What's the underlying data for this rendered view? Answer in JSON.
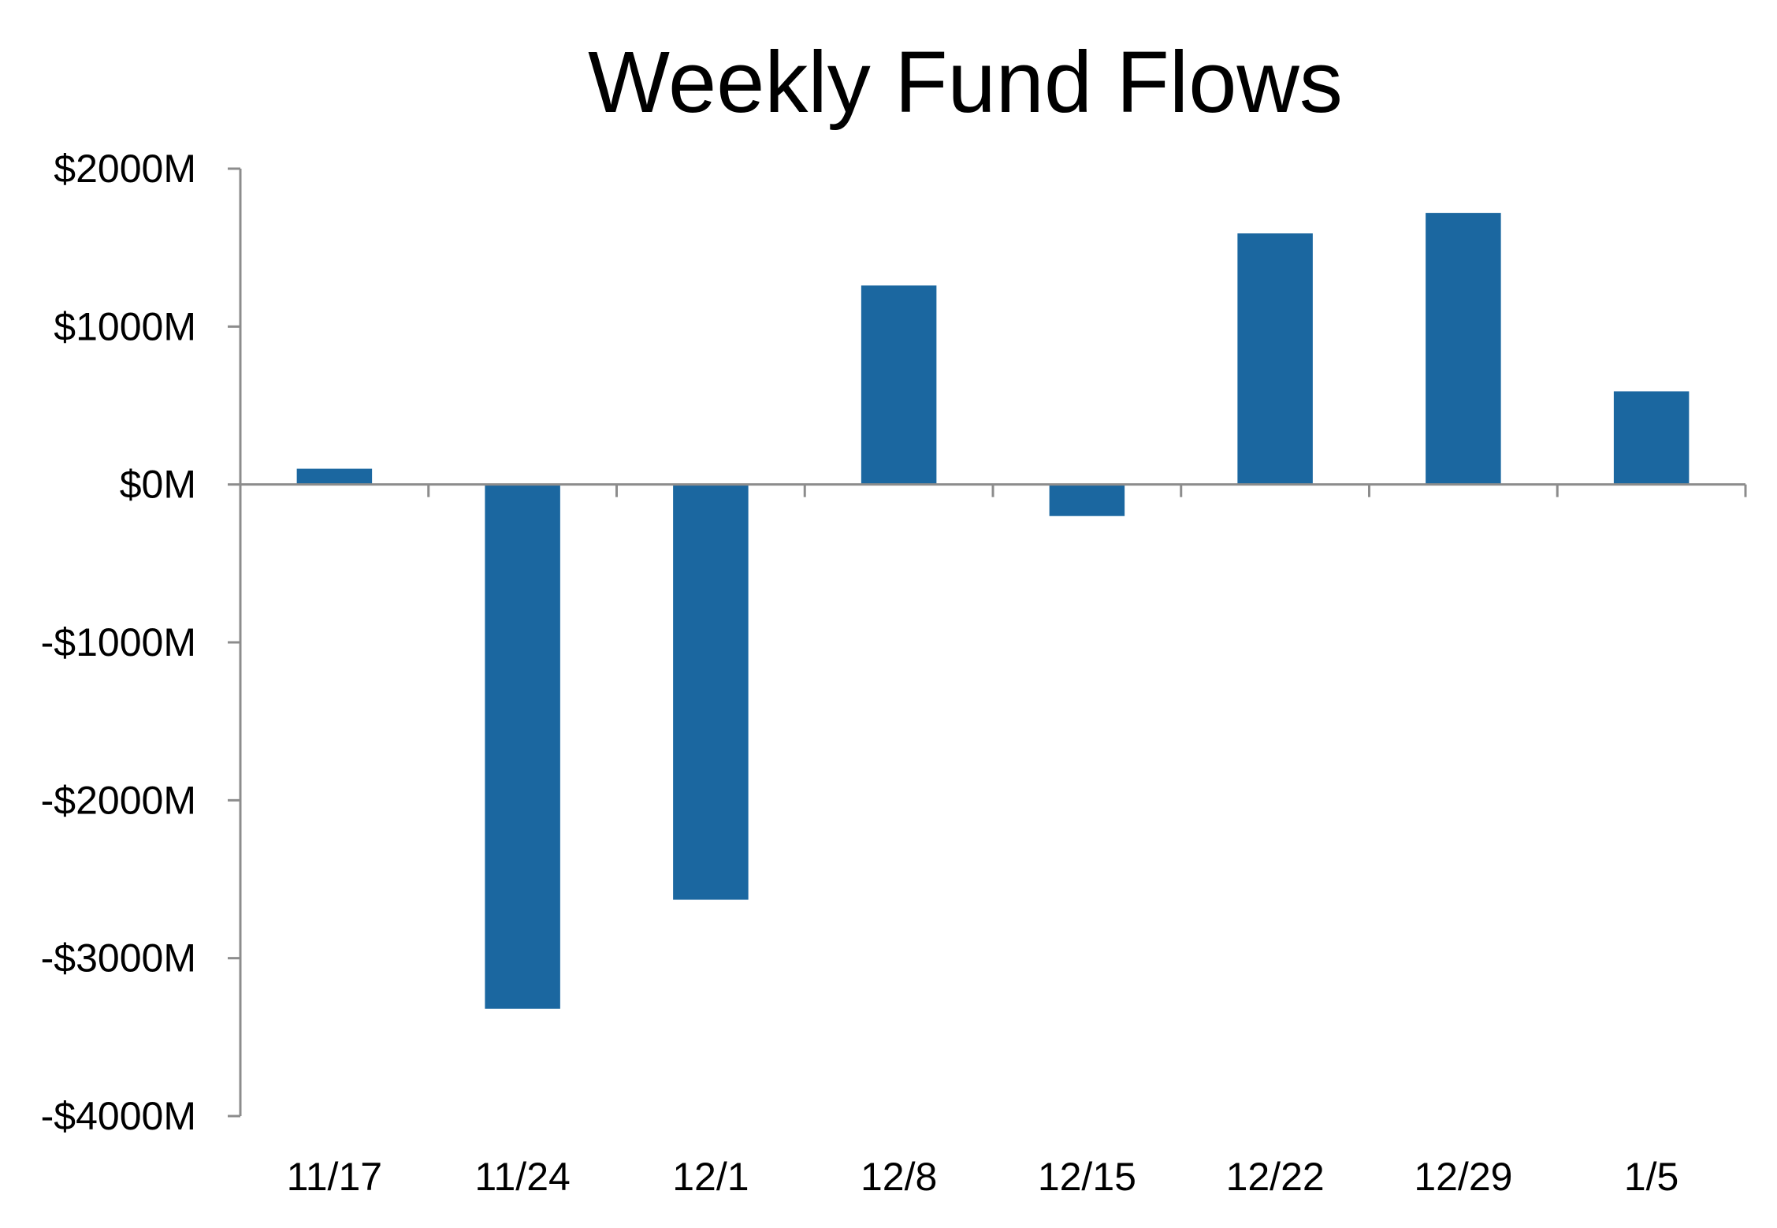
{
  "chart_data": {
    "type": "bar",
    "title": "Weekly Fund Flows",
    "xlabel": "",
    "ylabel": "",
    "categories": [
      "11/17",
      "11/24",
      "12/1",
      "12/8",
      "12/15",
      "12/22",
      "12/29",
      "1/5"
    ],
    "values": [
      100,
      -3320,
      -2630,
      1260,
      -200,
      1590,
      1720,
      590
    ],
    "ylim": [
      -4000,
      2000
    ],
    "yticks": [
      2000,
      1000,
      0,
      -1000,
      -2000,
      -3000,
      -4000
    ],
    "ytick_labels": [
      "$2000M",
      "$1000M",
      "$0M",
      "-$1000M",
      "-$2000M",
      "-$3000M",
      "-$4000M"
    ],
    "grid": false,
    "legend": "none",
    "bar_color": "#1b67a0",
    "axis_color": "#8c8c8c"
  }
}
